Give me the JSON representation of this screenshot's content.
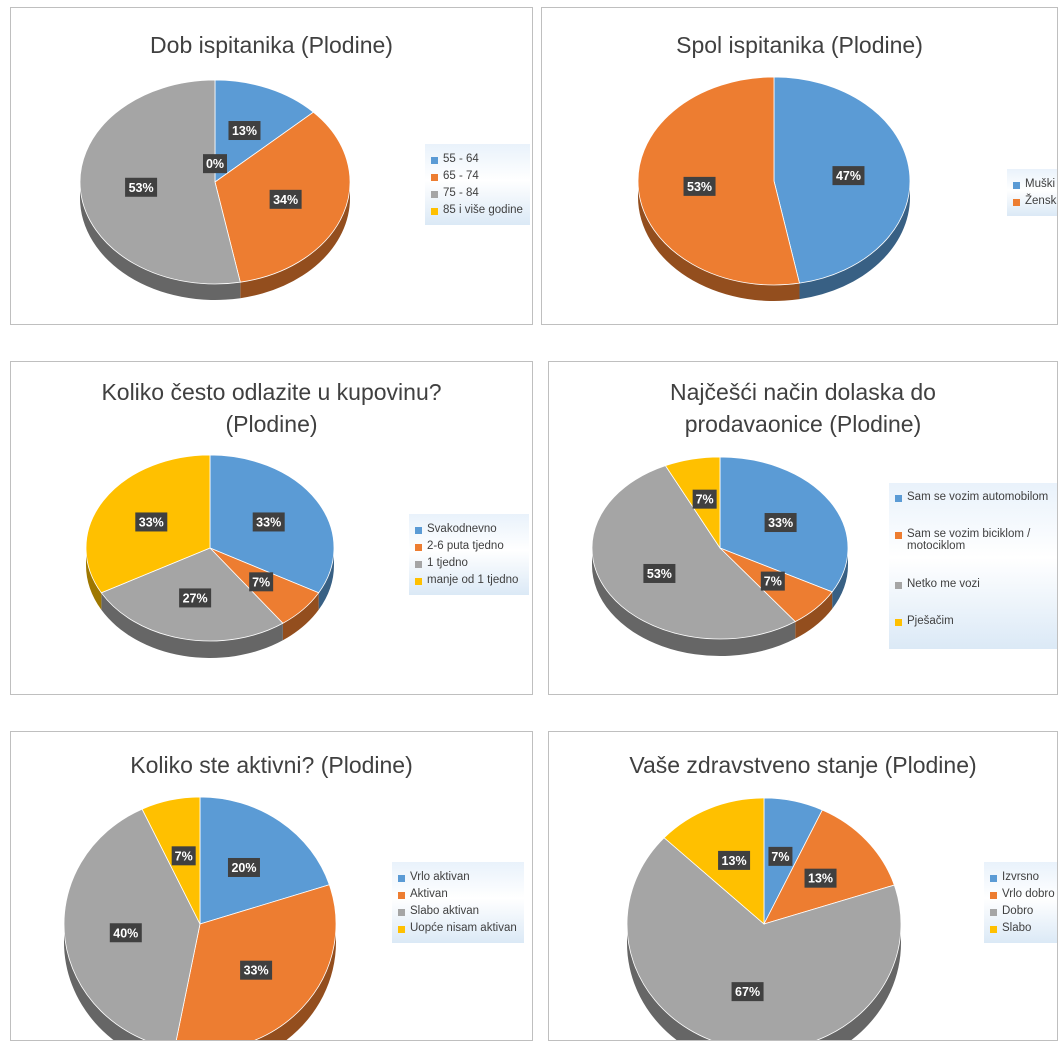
{
  "colors": {
    "blue": "#5b9bd5",
    "orange": "#ed7d31",
    "gray": "#a5a5a5",
    "yellow": "#ffc000",
    "label_bg": "#404040"
  },
  "chart_data": [
    {
      "type": "pie",
      "title": "Dob ispitanika (Plodine)",
      "categories": [
        "55 - 64",
        "65 - 74",
        "75 - 84",
        "85 i više godine"
      ],
      "values": [
        13,
        34,
        53,
        0
      ],
      "labels": [
        "13%",
        "34%",
        "53%",
        "0%"
      ],
      "colors": [
        "#5b9bd5",
        "#ed7d31",
        "#a5a5a5",
        "#ffc000"
      ],
      "legend_position": "right"
    },
    {
      "type": "pie",
      "title": "Spol ispitanika (Plodine)",
      "categories": [
        "Muški",
        "Ženski"
      ],
      "values": [
        47,
        53
      ],
      "labels": [
        "47%",
        "53%"
      ],
      "colors": [
        "#5b9bd5",
        "#ed7d31"
      ],
      "legend_position": "right"
    },
    {
      "type": "pie",
      "title": "Koliko često odlazite u kupovinu? (Plodine)",
      "categories": [
        "Svakodnevno",
        "2-6 puta tjedno",
        "1 tjedno",
        "manje od 1 tjedno"
      ],
      "values": [
        33,
        7,
        27,
        33
      ],
      "labels": [
        "33%",
        "7%",
        "27%",
        "33%"
      ],
      "colors": [
        "#5b9bd5",
        "#ed7d31",
        "#a5a5a5",
        "#ffc000"
      ],
      "legend_position": "right"
    },
    {
      "type": "pie",
      "title": "Najčešći način dolaska do prodavaonice (Plodine)",
      "categories": [
        "Sam se vozim automobilom",
        "Sam se vozim biciklom / motociklom",
        "Netko me vozi",
        "Pješačim"
      ],
      "values": [
        33,
        7,
        53,
        7
      ],
      "labels": [
        "33%",
        "7%",
        "53%",
        "7%"
      ],
      "colors": [
        "#5b9bd5",
        "#ed7d31",
        "#a5a5a5",
        "#ffc000"
      ],
      "legend_position": "right"
    },
    {
      "type": "pie",
      "title": "Koliko ste aktivni? (Plodine)",
      "categories": [
        "Vrlo aktivan",
        "Aktivan",
        "Slabo aktivan",
        "Uopće nisam aktivan"
      ],
      "values": [
        20,
        33,
        40,
        7
      ],
      "labels": [
        "20%",
        "33%",
        "40%",
        "7%"
      ],
      "colors": [
        "#5b9bd5",
        "#ed7d31",
        "#a5a5a5",
        "#ffc000"
      ],
      "legend_position": "right"
    },
    {
      "type": "pie",
      "title": "Vaše zdravstveno stanje (Plodine)",
      "categories": [
        "Izvrsno",
        "Vrlo dobro",
        "Dobro",
        "Slabo"
      ],
      "values": [
        7,
        13,
        67,
        13
      ],
      "labels": [
        "7%",
        "13%",
        "67%",
        "13%"
      ],
      "colors": [
        "#5b9bd5",
        "#ed7d31",
        "#a5a5a5",
        "#ffc000"
      ],
      "legend_position": "right"
    }
  ]
}
